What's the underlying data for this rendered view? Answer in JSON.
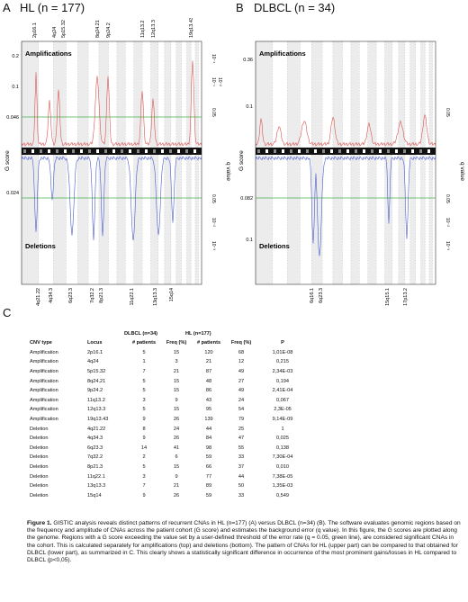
{
  "panelA": {
    "letter": "A",
    "title": "HL (n = 177)",
    "amp_label": "Amplifications",
    "del_label": "Deletions",
    "yaxis": "G score",
    "qaxis": "q value",
    "amp_ticks": [
      "0.2",
      "0.1",
      "0.046"
    ],
    "del_ticks": [
      "0.024"
    ],
    "q_amp_ticks": [
      "10⁻⁴",
      "10⁻¹",
      "10⁻²",
      "0.05"
    ],
    "q_del_ticks": [
      "0.05",
      "10⁻²",
      "10⁻³"
    ],
    "amp_loci": [
      "2p16.1",
      "4q24",
      "5p15.32",
      "8q24.21",
      "9p24.2",
      "11q13.2",
      "12q13.3",
      "19q13.43"
    ],
    "del_loci": [
      "4q21.22",
      "4q34.3",
      "6q23.3",
      "7q32.2",
      "8p21.3",
      "11q22.1",
      "13q13.3",
      "15q14"
    ]
  },
  "panelB": {
    "letter": "B",
    "title": "DLBCL (n = 34)",
    "amp_label": "Amplifications",
    "del_label": "Deletions",
    "yaxis": "G score",
    "qaxis": "q value",
    "amp_ticks": [
      "0.36",
      "0.1"
    ],
    "del_ticks": [
      "0.082",
      "0.1"
    ],
    "q_amp_ticks": [
      "0.05"
    ],
    "q_del_ticks": [
      "0.05",
      "10⁻²",
      "10⁻³"
    ],
    "del_loci": [
      "6q16.1",
      "6q23.3",
      "15q15.1",
      "17p13.2"
    ]
  },
  "panelC": {
    "letter": "C",
    "group_dlbcl": "DLBCL (n=34)",
    "group_hl": "HL (n=177)",
    "headers": [
      "CNV type",
      "Locus",
      "# patients",
      "Freq (%)",
      "# patients",
      "Freq (%)",
      "P"
    ],
    "rows": [
      [
        "Amplification",
        "2p16.1",
        "5",
        "15",
        "120",
        "68",
        "1,01E-08"
      ],
      [
        "Amplification",
        "4q24",
        "1",
        "3",
        "21",
        "12",
        "0,215"
      ],
      [
        "Amplification",
        "5p15.32",
        "7",
        "21",
        "87",
        "49",
        "2,34E-03"
      ],
      [
        "Amplification",
        "8q24.21",
        "5",
        "15",
        "48",
        "27",
        "0,194"
      ],
      [
        "Amplification",
        "9p24.2",
        "5",
        "15",
        "86",
        "49",
        "2,41E-04"
      ],
      [
        "Amplification",
        "11q13.2",
        "3",
        "9",
        "43",
        "24",
        "0,067"
      ],
      [
        "Amplification",
        "12q13.3",
        "5",
        "15",
        "95",
        "54",
        "2,3E-05"
      ],
      [
        "Amplification",
        "19q13.43",
        "9",
        "26",
        "139",
        "79",
        "9,14E-09"
      ],
      [
        "Deletion",
        "4q21.22",
        "8",
        "24",
        "44",
        "25",
        "1"
      ],
      [
        "Deletion",
        "4q34.3",
        "9",
        "26",
        "84",
        "47",
        "0,025"
      ],
      [
        "Deletion",
        "6q23.3",
        "14",
        "41",
        "98",
        "55",
        "0,138"
      ],
      [
        "Deletion",
        "7q32.2",
        "2",
        "6",
        "59",
        "33",
        "7,30E-04"
      ],
      [
        "Deletion",
        "8p21.3",
        "5",
        "15",
        "66",
        "37",
        "0,010"
      ],
      [
        "Deletion",
        "11q22.1",
        "3",
        "9",
        "77",
        "44",
        "7,38E-05"
      ],
      [
        "Deletion",
        "13q13.3",
        "7",
        "21",
        "89",
        "50",
        "1,35E-03"
      ],
      [
        "Deletion",
        "15q14",
        "9",
        "26",
        "59",
        "33",
        "0,549"
      ]
    ]
  },
  "caption": {
    "lead": "Figure 1.",
    "body": " GISTIC analysis reveals distinct patterns of recurrent CNAs in HL (n=177) (A) versus DLBCL (n=34) (B). The software evaluates genomic regions based on the frequency and amplitude of CNAs across the patient cohort (G score) and estimates the background error (q value). In this figure, the G scores are plotted along the genome. Regions with a G score exceeding the value set by a user-defined threshold of the error rate (q = 0.05, green line), are considered significant CNAs in the cohort. This is calculated separately for amplifications (top) and deletions (bottom). The pattern of CNAs for HL (upper part) can be compared to that obtained for DLBCL (lower part), as summarized in C. This clearly shows a statistically significant difference in occurrence of the most prominent gains/losses in HL compared to DLBCL (p<0,05)."
  },
  "colors": {
    "amp": "#d9534f",
    "del": "#4a5bd0",
    "threshold": "#3fb24a",
    "band": "#e8e8e8"
  }
}
